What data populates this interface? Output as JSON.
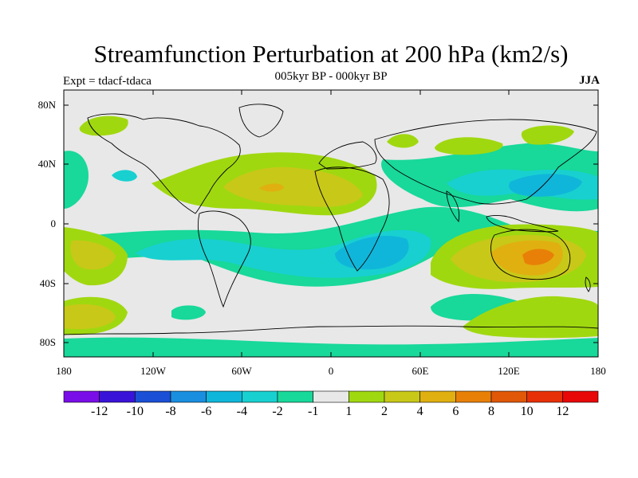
{
  "title": "Streamfunction Perturbation at 200 hPa (km2/s)",
  "subtitle": "005kyr BP - 000kyr BP",
  "expt_label": "Expt = tdacf-tdaca",
  "season": "JJA",
  "lat_ticks": [
    "80N",
    "40N",
    "0",
    "40S",
    "80S"
  ],
  "lon_ticks": [
    "180",
    "120W",
    "60W",
    "0",
    "60E",
    "120E",
    "180"
  ],
  "colorbar": {
    "labels": [
      "-12",
      "-10",
      "-8",
      "-6",
      "-4",
      "-2",
      "-1",
      "1",
      "2",
      "4",
      "6",
      "8",
      "10",
      "12"
    ],
    "colors": [
      "#7a0ee8",
      "#3a13d8",
      "#1a4fd6",
      "#1a8fe0",
      "#10b6da",
      "#18d0d0",
      "#18d89a",
      "#e8e8e8",
      "#a0d810",
      "#c8c818",
      "#e0b010",
      "#e88008",
      "#e05808",
      "#e83008",
      "#e80808"
    ]
  },
  "chart_data": {
    "type": "contour-map",
    "title": "Streamfunction Perturbation at 200 hPa (km2/s)",
    "subtitle": "005kyr BP - 000kyr BP",
    "variable": "streamfunction perturbation",
    "level": "200 hPa",
    "units": "km2/s",
    "season": "JJA",
    "xrange": [
      -180,
      180
    ],
    "yrange": [
      -90,
      90
    ],
    "contour_levels": [
      -12,
      -10,
      -8,
      -6,
      -4,
      -2,
      -1,
      1,
      2,
      4,
      6,
      8,
      10,
      12
    ]
  }
}
